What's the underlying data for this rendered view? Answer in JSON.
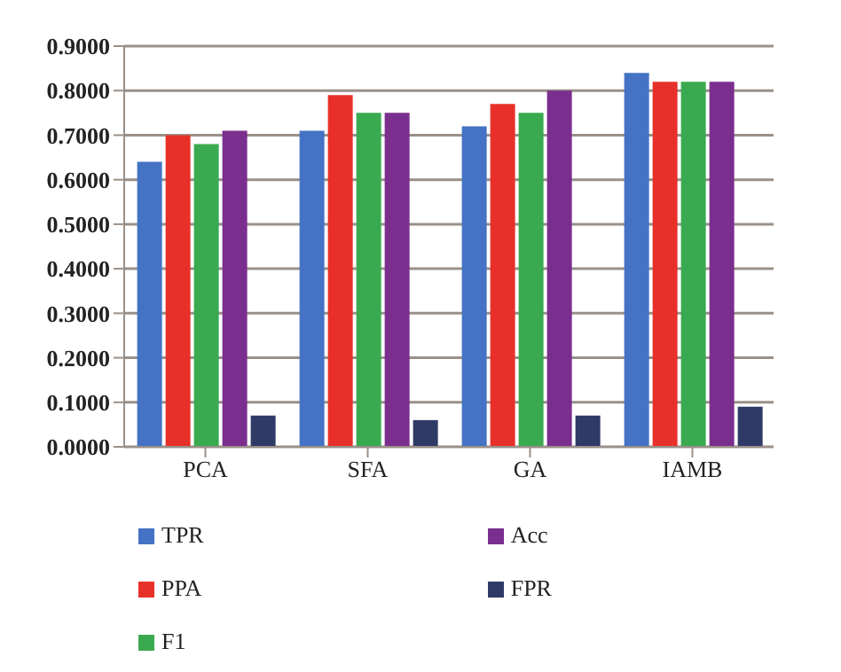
{
  "chart_data": {
    "type": "bar",
    "categories": [
      "PCA",
      "SFA",
      "GA",
      "IAMB"
    ],
    "series": [
      {
        "name": "TPR",
        "color": "#4472c4",
        "values": [
          0.64,
          0.71,
          0.72,
          0.84
        ]
      },
      {
        "name": "PPA",
        "color": "#e8302a",
        "values": [
          0.7,
          0.79,
          0.77,
          0.82
        ]
      },
      {
        "name": "F1",
        "color": "#3aaa50",
        "values": [
          0.68,
          0.75,
          0.75,
          0.82
        ]
      },
      {
        "name": "Acc",
        "color": "#7a2e8e",
        "values": [
          0.71,
          0.75,
          0.8,
          0.82
        ]
      },
      {
        "name": "FPR",
        "color": "#2f3a66",
        "values": [
          0.07,
          0.06,
          0.07,
          0.09
        ]
      }
    ],
    "ylim": [
      0,
      0.9
    ],
    "yticks": [
      {
        "value": 0,
        "label": "0.0000"
      },
      {
        "value": 0.1,
        "label": "0.1000"
      },
      {
        "value": 0.2,
        "label": "0.2000"
      },
      {
        "value": 0.3,
        "label": "0.3000"
      },
      {
        "value": 0.4,
        "label": "0.4000"
      },
      {
        "value": 0.5,
        "label": "0.5000"
      },
      {
        "value": 0.6,
        "label": "0.6000"
      },
      {
        "value": 0.7,
        "label": "0.7000"
      },
      {
        "value": 0.8,
        "label": "0.8000"
      },
      {
        "value": 0.9,
        "label": "0.9000"
      }
    ],
    "grid": "y",
    "legend": "bottom"
  }
}
